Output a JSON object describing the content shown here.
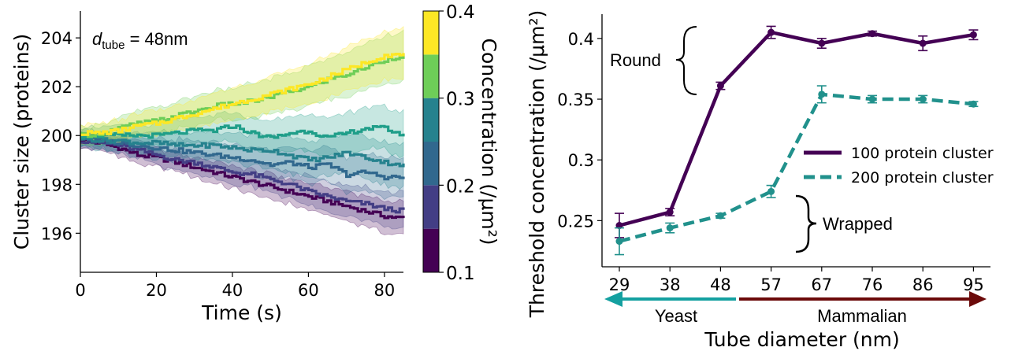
{
  "colors": {
    "c0.1": "#440154",
    "c0.15": "#433e85",
    "c0.2": "#31688e",
    "c0.25": "#26828e",
    "c0.3": "#1f9e89",
    "c0.35": "#6ece58",
    "c0.4": "#fde725",
    "series100": "#440154",
    "series200": "#21918c",
    "yeast": "#14a0a0",
    "mammalian": "#6b0a0a"
  },
  "chart_data": [
    {
      "type": "line",
      "xlabel": "Time (s)",
      "ylabel": "Cluster size (proteins)",
      "xlim": [
        0,
        85
      ],
      "ylim": [
        194.4,
        205.1
      ],
      "xticks": [
        "0",
        "20",
        "40",
        "60",
        "80"
      ],
      "yticks": [
        "196",
        "198",
        "200",
        "202",
        "204"
      ],
      "annotation": {
        "prefix": "d",
        "subscript": "tube",
        "suffix": " = 48nm"
      },
      "colorbar": {
        "label": "Concentration (/μm²)",
        "range": [
          0.1,
          0.4
        ],
        "ticks": [
          "0.1",
          "0.2",
          "0.3",
          "0.4"
        ],
        "bins": [
          0.1,
          0.15,
          0.2,
          0.25,
          0.3,
          0.35,
          0.4
        ]
      },
      "series": [
        {
          "concentration": 0.1,
          "color_key": "c0.1",
          "x": [
            0,
            5,
            10,
            15,
            20,
            25,
            30,
            35,
            40,
            45,
            50,
            55,
            60,
            65,
            70,
            75,
            80,
            85
          ],
          "y": [
            199.8,
            199.7,
            199.5,
            199.2,
            199.1,
            198.9,
            198.7,
            198.5,
            198.3,
            198.1,
            197.9,
            197.7,
            197.5,
            197.3,
            197.1,
            196.9,
            196.7,
            196.6
          ],
          "band": 0.55
        },
        {
          "concentration": 0.15,
          "color_key": "c0.15",
          "x": [
            0,
            5,
            10,
            15,
            20,
            25,
            30,
            35,
            40,
            45,
            50,
            55,
            60,
            65,
            70,
            75,
            80,
            85
          ],
          "y": [
            199.8,
            199.7,
            199.6,
            199.4,
            199.2,
            199.0,
            198.9,
            198.7,
            198.5,
            198.4,
            198.2,
            198.0,
            197.7,
            197.5,
            197.3,
            197.2,
            197.0,
            196.9
          ],
          "band": 0.6
        },
        {
          "concentration": 0.2,
          "color_key": "c0.2",
          "x": [
            0,
            5,
            10,
            15,
            20,
            25,
            30,
            35,
            40,
            45,
            50,
            55,
            60,
            65,
            70,
            75,
            80,
            85
          ],
          "y": [
            199.9,
            199.8,
            199.7,
            199.6,
            199.5,
            199.4,
            199.3,
            199.2,
            199.1,
            199.0,
            198.8,
            198.9,
            198.7,
            198.8,
            198.4,
            198.5,
            198.3,
            198.3
          ],
          "band": 0.7
        },
        {
          "concentration": 0.25,
          "color_key": "c0.25",
          "x": [
            0,
            5,
            10,
            15,
            20,
            25,
            30,
            35,
            40,
            45,
            50,
            55,
            60,
            65,
            70,
            75,
            80,
            85
          ],
          "y": [
            199.9,
            199.8,
            199.8,
            199.7,
            199.7,
            199.6,
            199.6,
            199.6,
            199.5,
            199.4,
            199.4,
            199.2,
            199.0,
            199.1,
            199.3,
            199.1,
            198.9,
            198.8
          ],
          "band": 0.8
        },
        {
          "concentration": 0.3,
          "color_key": "c0.3",
          "x": [
            0,
            5,
            10,
            15,
            20,
            25,
            30,
            35,
            40,
            45,
            50,
            55,
            60,
            65,
            70,
            75,
            80,
            85
          ],
          "y": [
            200.0,
            200.0,
            200.0,
            200.0,
            200.0,
            200.1,
            200.2,
            200.2,
            200.4,
            200.1,
            199.9,
            200.1,
            200.2,
            199.9,
            200.1,
            200.3,
            200.3,
            200.0
          ],
          "band": 0.8
        },
        {
          "concentration": 0.35,
          "color_key": "c0.35",
          "x": [
            0,
            5,
            10,
            15,
            20,
            25,
            30,
            35,
            40,
            45,
            50,
            55,
            60,
            65,
            70,
            75,
            80,
            85
          ],
          "y": [
            200.0,
            200.1,
            200.3,
            200.5,
            200.6,
            200.8,
            201.0,
            201.2,
            201.3,
            201.4,
            201.6,
            201.8,
            202.0,
            202.3,
            202.5,
            202.8,
            203.1,
            203.3
          ],
          "band": 0.9
        },
        {
          "concentration": 0.4,
          "color_key": "c0.4",
          "x": [
            0,
            5,
            10,
            15,
            20,
            25,
            30,
            35,
            40,
            45,
            50,
            55,
            60,
            65,
            70,
            75,
            80,
            85
          ],
          "y": [
            200.1,
            200.1,
            200.2,
            200.4,
            200.5,
            200.7,
            200.9,
            201.1,
            201.3,
            201.5,
            201.7,
            201.9,
            202.1,
            202.4,
            202.7,
            203.0,
            203.3,
            203.3
          ],
          "band": 0.9
        }
      ]
    },
    {
      "type": "line",
      "xlabel": "Tube diameter (nm)",
      "ylabel": "Threshold concentration (/μm²)",
      "categories": [
        "29",
        "38",
        "48",
        "57",
        "67",
        "76",
        "86",
        "95"
      ],
      "ylim": [
        0.212,
        0.42
      ],
      "yticks": [
        "0.25",
        "0.3",
        "0.35",
        "0.4"
      ],
      "legend": {
        "placement": "center-right"
      },
      "series": [
        {
          "name": "100 protein cluster",
          "style": "solid",
          "color_key": "series100",
          "values": [
            0.246,
            0.257,
            0.361,
            0.405,
            0.396,
            0.404,
            0.396,
            0.403
          ],
          "errors": [
            0.01,
            0.003,
            0.003,
            0.005,
            0.004,
            0.002,
            0.006,
            0.004
          ]
        },
        {
          "name": "200 protein cluster",
          "style": "dashed",
          "color_key": "series200",
          "values": [
            0.233,
            0.244,
            0.254,
            0.274,
            0.354,
            0.35,
            0.35,
            0.346
          ],
          "errors": [
            0.011,
            0.004,
            0.002,
            0.005,
            0.007,
            0.003,
            0.003,
            0.002
          ]
        }
      ],
      "annotations": {
        "round": "Round",
        "wrapped": "Wrapped"
      },
      "arrows": {
        "yeast": "Yeast",
        "mammalian": "Mammalian"
      }
    }
  ]
}
